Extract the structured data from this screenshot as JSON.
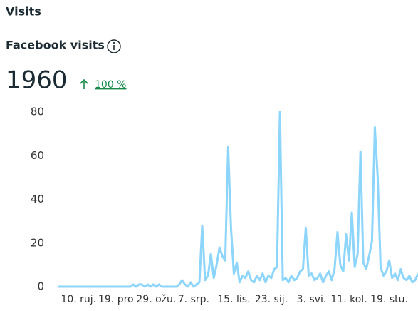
{
  "header": {
    "title": "Visits"
  },
  "metric": {
    "label": "Facebook visits",
    "value": "1960",
    "change": "100 %"
  },
  "chart_data": {
    "type": "line",
    "categories": [
      null,
      null,
      null,
      null,
      null,
      null,
      null,
      "10. ruj.",
      null,
      null,
      null,
      null,
      null,
      null,
      null,
      null,
      null,
      null,
      null,
      null,
      "19. pro",
      null,
      null,
      null,
      null,
      null,
      null,
      null,
      null,
      null,
      null,
      null,
      null,
      null,
      "29. ožu.",
      null,
      null,
      null,
      null,
      null,
      null,
      null,
      null,
      null,
      null,
      null,
      null,
      "7. srp.",
      null,
      null,
      null,
      null,
      null,
      null,
      null,
      null,
      null,
      null,
      null,
      null,
      null,
      "15. lis.",
      null,
      null,
      null,
      null,
      null,
      null,
      null,
      null,
      null,
      null,
      null,
      null,
      "23. sij.",
      null,
      null,
      null,
      null,
      null,
      null,
      null,
      null,
      null,
      null,
      null,
      null,
      null,
      "3. svi.",
      null,
      null,
      null,
      null,
      null,
      null,
      null,
      null,
      null,
      null,
      null,
      null,
      "11. kol.",
      null,
      null,
      null,
      null,
      null,
      null,
      null,
      null,
      null,
      null,
      null,
      null,
      null,
      "19. stu.",
      null,
      null,
      null,
      null,
      null,
      null,
      null,
      null,
      null,
      null
    ],
    "series": [
      {
        "name": "Facebook visits",
        "color": "#8dd5fa",
        "values": [
          0,
          0,
          0,
          0,
          0,
          0,
          0,
          0,
          0,
          0,
          0,
          0,
          0,
          0,
          0,
          0,
          0,
          0,
          0,
          0,
          0,
          0,
          0,
          0,
          0,
          0,
          1,
          0,
          1,
          1,
          0,
          1,
          0,
          1,
          0,
          1,
          0,
          0,
          0,
          0,
          0,
          0,
          1,
          3,
          1,
          0,
          2,
          0,
          1,
          2,
          28,
          3,
          5,
          15,
          4,
          10,
          18,
          14,
          12,
          64,
          27,
          6,
          11,
          2,
          5,
          4,
          7,
          3,
          2,
          5,
          3,
          6,
          2,
          5,
          4,
          8,
          9,
          80,
          3,
          4,
          2,
          5,
          3,
          4,
          7,
          8,
          27,
          5,
          6,
          3,
          4,
          6,
          2,
          5,
          7,
          3,
          8,
          25,
          10,
          7,
          24,
          12,
          34,
          9,
          15,
          62,
          11,
          8,
          14,
          21,
          73,
          50,
          9,
          5,
          7,
          12,
          4,
          6,
          3,
          8,
          4,
          3,
          5,
          2,
          3,
          6
        ]
      }
    ],
    "ylim": [
      0,
      80
    ],
    "yticks": [
      0,
      20,
      40,
      60,
      80
    ]
  }
}
